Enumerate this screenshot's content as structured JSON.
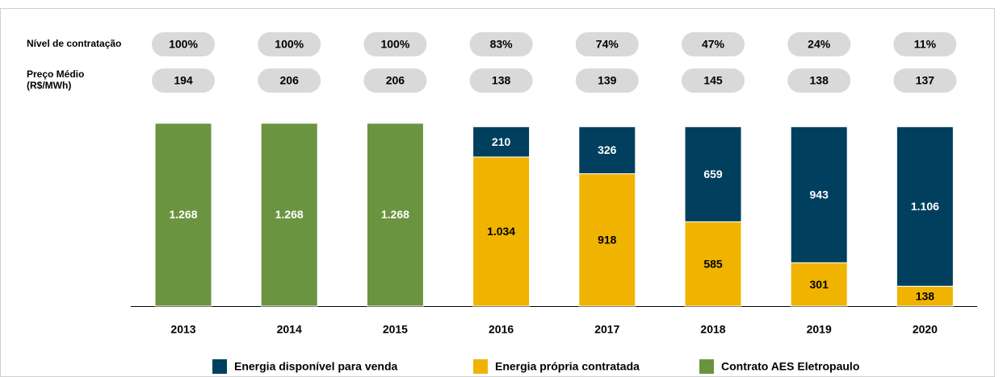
{
  "chart_data": {
    "type": "stacked_bar",
    "categories": [
      "2013",
      "2014",
      "2015",
      "2016",
      "2017",
      "2018",
      "2019",
      "2020"
    ],
    "series": [
      {
        "name": "Energia disponível para venda",
        "color": "#003f5e",
        "label_color": "#ffffff",
        "values": [
          null,
          null,
          null,
          210,
          326,
          659,
          943,
          1106
        ],
        "value_labels": [
          null,
          null,
          null,
          "210",
          "326",
          "659",
          "943",
          "1.106"
        ]
      },
      {
        "name": "Energia própria contratada",
        "color": "#f0b400",
        "label_color": "#000000",
        "values": [
          null,
          null,
          null,
          1034,
          918,
          585,
          301,
          138
        ],
        "value_labels": [
          null,
          null,
          null,
          "1.034",
          "918",
          "585",
          "301",
          "138"
        ]
      },
      {
        "name": "Contrato AES Eletropaulo",
        "color": "#6b9440",
        "label_color": "#ffffff",
        "values": [
          1268,
          1268,
          1268,
          null,
          null,
          null,
          null,
          null
        ],
        "value_labels": [
          "1.268",
          "1.268",
          "1.268",
          null,
          null,
          null,
          null,
          null
        ]
      }
    ],
    "rows": [
      {
        "label_lines": [
          "Nível de contratação"
        ],
        "values": [
          100,
          100,
          100,
          83,
          74,
          47,
          24,
          11
        ],
        "value_labels": [
          "100%",
          "100%",
          "100%",
          "83%",
          "74%",
          "47%",
          "24%",
          "11%"
        ]
      },
      {
        "label_lines": [
          "Preço Médio",
          "(R$/MWh)"
        ],
        "values": [
          194,
          206,
          206,
          138,
          139,
          145,
          138,
          137
        ]
      }
    ]
  }
}
